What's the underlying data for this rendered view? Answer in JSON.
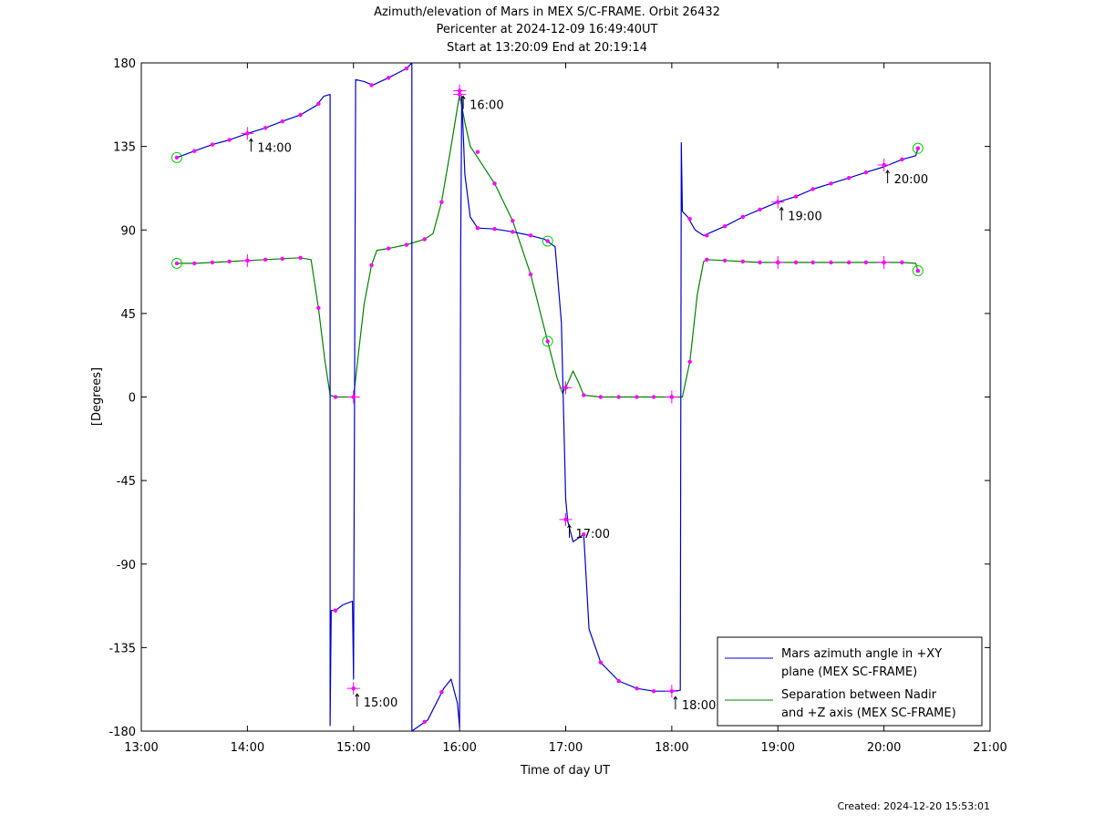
{
  "title_lines": [
    "Azimuth/elevation of Mars in MEX S/C-FRAME.  Orbit 26432",
    "Pericenter at 2024-12-09 16:49:40UT",
    "Start at 13:20:09 End at 20:19:14"
  ],
  "created": "Created: 2024-12-20 15:53:01",
  "chart_data": {
    "type": "line",
    "title": "Azimuth/elevation of Mars in MEX S/C-FRAME.  Orbit 26432",
    "subtitle": "Pericenter at 2024-12-09 16:49:40UT / Start at 13:20:09 End at 20:19:14",
    "xlabel": "Time of day UT",
    "ylabel": "[Degrees]",
    "x_unit": "hours of day UT",
    "xlim": [
      13,
      21
    ],
    "ylim": [
      -180,
      180
    ],
    "x_ticks": [
      {
        "v": 13,
        "label": "13:00"
      },
      {
        "v": 14,
        "label": "14:00"
      },
      {
        "v": 15,
        "label": "15:00"
      },
      {
        "v": 16,
        "label": "16:00"
      },
      {
        "v": 17,
        "label": "17:00"
      },
      {
        "v": 18,
        "label": "18:00"
      },
      {
        "v": 19,
        "label": "19:00"
      },
      {
        "v": 20,
        "label": "20:00"
      },
      {
        "v": 21,
        "label": "21:00"
      }
    ],
    "y_ticks": [
      {
        "v": 180,
        "label": "180"
      },
      {
        "v": 135,
        "label": "135"
      },
      {
        "v": 90,
        "label": "90"
      },
      {
        "v": 45,
        "label": "45"
      },
      {
        "v": 0,
        "label": "0"
      },
      {
        "v": -45,
        "label": "-45"
      },
      {
        "v": -90,
        "label": "-90"
      },
      {
        "v": -135,
        "label": "-135"
      },
      {
        "v": -180,
        "label": "-180"
      }
    ],
    "grid": false,
    "legend_position": "bottom-right",
    "series": [
      {
        "name": "Mars azimuth angle in +XY plane (MEX SC-FRAME)",
        "legend_lines": [
          "Mars azimuth angle in +XY",
          "plane (MEX SC-FRAME)"
        ],
        "color": "#0000cc",
        "points": [
          [
            13.335,
            129
          ],
          [
            13.5,
            132.5
          ],
          [
            13.67,
            136
          ],
          [
            13.83,
            138.5
          ],
          [
            14.0,
            142
          ],
          [
            14.17,
            145
          ],
          [
            14.33,
            148.5
          ],
          [
            14.5,
            152
          ],
          [
            14.65,
            157
          ],
          [
            14.72,
            162
          ],
          [
            14.78,
            163
          ],
          [
            14.78,
            -177
          ],
          [
            14.79,
            -115
          ],
          [
            14.8,
            -115
          ],
          [
            14.83,
            -115
          ],
          [
            14.9,
            -112
          ],
          [
            14.99,
            -110
          ],
          [
            15.0,
            -152
          ],
          [
            15.01,
            0
          ],
          [
            15.02,
            171
          ],
          [
            15.1,
            170
          ],
          [
            15.18,
            168
          ],
          [
            15.33,
            172
          ],
          [
            15.5,
            177
          ],
          [
            15.55,
            180
          ],
          [
            15.55,
            -180
          ],
          [
            15.7,
            -174
          ],
          [
            15.85,
            -157
          ],
          [
            15.92,
            -152
          ],
          [
            15.98,
            -165
          ],
          [
            16.0,
            -178
          ],
          [
            16.01,
            80
          ],
          [
            16.02,
            162
          ],
          [
            16.05,
            120
          ],
          [
            16.1,
            97
          ],
          [
            16.17,
            91
          ],
          [
            16.33,
            90.5
          ],
          [
            16.5,
            89
          ],
          [
            16.67,
            87
          ],
          [
            16.8,
            85
          ],
          [
            16.9,
            81
          ],
          [
            16.96,
            40
          ],
          [
            17.0,
            -55
          ],
          [
            17.02,
            -67
          ],
          [
            17.07,
            -78
          ],
          [
            17.12,
            -76
          ],
          [
            17.17,
            -74
          ],
          [
            17.22,
            -125
          ],
          [
            17.33,
            -143
          ],
          [
            17.5,
            -153
          ],
          [
            17.67,
            -157
          ],
          [
            17.83,
            -158.5
          ],
          [
            18.0,
            -158.5
          ],
          [
            18.08,
            -158
          ],
          [
            18.09,
            137
          ],
          [
            18.1,
            100
          ],
          [
            18.15,
            97
          ],
          [
            18.22,
            90
          ],
          [
            18.3,
            87
          ],
          [
            18.5,
            92
          ],
          [
            18.67,
            97
          ],
          [
            18.83,
            101
          ],
          [
            19.0,
            105
          ],
          [
            19.17,
            108
          ],
          [
            19.33,
            112
          ],
          [
            19.5,
            115
          ],
          [
            19.67,
            118
          ],
          [
            19.83,
            121
          ],
          [
            20.0,
            124
          ],
          [
            20.17,
            128
          ],
          [
            20.3,
            130
          ],
          [
            20.32,
            134
          ]
        ],
        "markers": [
          [
            13.5,
            132.5
          ],
          [
            13.67,
            136
          ],
          [
            13.83,
            138.5
          ],
          [
            14.0,
            142
          ],
          [
            14.17,
            145
          ],
          [
            14.33,
            148.5
          ],
          [
            14.5,
            152
          ],
          [
            14.67,
            158
          ],
          [
            14.83,
            -115
          ],
          [
            15.17,
            168
          ],
          [
            15.33,
            172
          ],
          [
            15.5,
            177
          ],
          [
            15.67,
            -175
          ],
          [
            15.83,
            -159
          ],
          [
            16.17,
            91
          ],
          [
            16.33,
            90.5
          ],
          [
            16.5,
            89
          ],
          [
            16.67,
            87
          ],
          [
            17.17,
            -74
          ],
          [
            17.33,
            -143
          ],
          [
            17.5,
            -153
          ],
          [
            17.67,
            -157
          ],
          [
            17.83,
            -158.5
          ],
          [
            18.17,
            96
          ],
          [
            18.33,
            87
          ],
          [
            18.5,
            92
          ],
          [
            18.67,
            97
          ],
          [
            18.83,
            101
          ],
          [
            19.17,
            108
          ],
          [
            19.33,
            112
          ],
          [
            19.5,
            115
          ],
          [
            19.67,
            118
          ],
          [
            19.83,
            121
          ],
          [
            20.17,
            128
          ],
          [
            20.32,
            134
          ]
        ],
        "hour_markers": [
          [
            14.0,
            142
          ],
          [
            15.0,
            -157
          ],
          [
            16.0,
            163
          ],
          [
            17.0,
            -66
          ],
          [
            18.0,
            -158.5
          ],
          [
            19.0,
            105
          ],
          [
            20.0,
            125
          ]
        ],
        "hour_labels": [
          {
            "x": 14.0,
            "y": 142,
            "label": "14:00"
          },
          {
            "x": 15.0,
            "y": -157,
            "label": "15:00"
          },
          {
            "x": 17.0,
            "y": -66,
            "label": "17:00"
          },
          {
            "x": 18.0,
            "y": -158.5,
            "label": "18:00"
          },
          {
            "x": 19.0,
            "y": 105,
            "label": "19:00"
          },
          {
            "x": 20.0,
            "y": 125,
            "label": "20:00"
          }
        ],
        "endpoints": [
          [
            13.335,
            129
          ],
          [
            20.32,
            134
          ]
        ]
      },
      {
        "name": "Separation between Nadir and +Z axis (MEX SC-FRAME)",
        "legend_lines": [
          "Separation between Nadir",
          "and +Z axis (MEX SC-FRAME)"
        ],
        "color": "#008000",
        "points": [
          [
            13.335,
            72
          ],
          [
            13.5,
            72
          ],
          [
            13.67,
            72.5
          ],
          [
            13.83,
            73
          ],
          [
            14.0,
            73.5
          ],
          [
            14.17,
            74
          ],
          [
            14.33,
            74.5
          ],
          [
            14.5,
            75
          ],
          [
            14.6,
            74
          ],
          [
            14.67,
            48
          ],
          [
            14.73,
            20
          ],
          [
            14.78,
            1
          ],
          [
            14.83,
            0
          ],
          [
            15.0,
            0
          ],
          [
            15.04,
            20
          ],
          [
            15.1,
            50
          ],
          [
            15.17,
            71
          ],
          [
            15.22,
            79
          ],
          [
            15.33,
            80
          ],
          [
            15.5,
            82
          ],
          [
            15.67,
            85
          ],
          [
            15.75,
            88
          ],
          [
            15.83,
            105
          ],
          [
            15.92,
            135
          ],
          [
            16.0,
            163
          ],
          [
            16.05,
            148
          ],
          [
            16.1,
            135
          ],
          [
            16.17,
            129
          ],
          [
            16.33,
            115
          ],
          [
            16.5,
            95
          ],
          [
            16.67,
            66
          ],
          [
            16.83,
            30
          ],
          [
            16.92,
            10
          ],
          [
            16.97,
            2
          ],
          [
            17.0,
            5
          ],
          [
            17.07,
            14
          ],
          [
            17.12,
            8
          ],
          [
            17.17,
            1
          ],
          [
            17.33,
            0
          ],
          [
            17.5,
            0
          ],
          [
            17.67,
            0
          ],
          [
            17.83,
            0
          ],
          [
            18.0,
            0
          ],
          [
            18.1,
            0
          ],
          [
            18.17,
            19
          ],
          [
            18.24,
            55
          ],
          [
            18.3,
            73
          ],
          [
            18.33,
            74
          ],
          [
            18.5,
            73.5
          ],
          [
            18.67,
            73
          ],
          [
            18.83,
            72.5
          ],
          [
            19.0,
            72.5
          ],
          [
            19.17,
            72.5
          ],
          [
            19.33,
            72.5
          ],
          [
            19.5,
            72.5
          ],
          [
            19.67,
            72.5
          ],
          [
            19.83,
            72.5
          ],
          [
            20.0,
            72.5
          ],
          [
            20.17,
            72.5
          ],
          [
            20.3,
            72
          ],
          [
            20.32,
            68
          ]
        ],
        "markers": [
          [
            13.5,
            72
          ],
          [
            13.67,
            72.5
          ],
          [
            13.83,
            73
          ],
          [
            14.0,
            73.5
          ],
          [
            14.17,
            74
          ],
          [
            14.33,
            74.5
          ],
          [
            14.5,
            75
          ],
          [
            14.67,
            48
          ],
          [
            14.83,
            0
          ],
          [
            15.0,
            0
          ],
          [
            15.17,
            71
          ],
          [
            15.33,
            80
          ],
          [
            15.5,
            82
          ],
          [
            15.67,
            85
          ],
          [
            15.83,
            105
          ],
          [
            16.17,
            132
          ],
          [
            16.33,
            115
          ],
          [
            16.5,
            95
          ],
          [
            16.67,
            66
          ],
          [
            17.0,
            5
          ],
          [
            17.17,
            1
          ],
          [
            17.33,
            0
          ],
          [
            17.5,
            0
          ],
          [
            17.67,
            0
          ],
          [
            17.83,
            0
          ],
          [
            18.0,
            0
          ],
          [
            18.17,
            19
          ],
          [
            18.33,
            74
          ],
          [
            18.5,
            73.5
          ],
          [
            18.67,
            73
          ],
          [
            18.83,
            72.5
          ],
          [
            19.0,
            72.5
          ],
          [
            19.17,
            72.5
          ],
          [
            19.33,
            72.5
          ],
          [
            19.5,
            72.5
          ],
          [
            19.67,
            72.5
          ],
          [
            19.83,
            72.5
          ],
          [
            20.0,
            72.5
          ],
          [
            20.17,
            72.5
          ],
          [
            20.32,
            68
          ]
        ],
        "hour_markers": [
          [
            14.0,
            73.5
          ],
          [
            15.0,
            0
          ],
          [
            16.0,
            165
          ],
          [
            17.0,
            5
          ],
          [
            18.0,
            0
          ],
          [
            19.0,
            72.5
          ],
          [
            20.0,
            72.5
          ]
        ],
        "hour_labels": [
          {
            "x": 16.0,
            "y": 165,
            "label": "16:00"
          }
        ],
        "endpoints": [
          [
            13.335,
            72
          ],
          [
            20.32,
            68
          ],
          [
            16.83,
            84
          ],
          [
            16.83,
            30
          ]
        ]
      }
    ]
  }
}
